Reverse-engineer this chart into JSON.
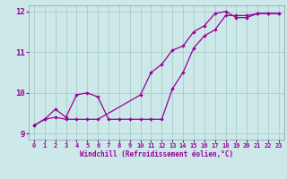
{
  "background_color": "#cce8e8",
  "line_color": "#990099",
  "grid_color": "#aacccc",
  "xlabel": "Windchill (Refroidissement éolien,°C)",
  "xlim": [
    -0.5,
    23.5
  ],
  "ylim": [
    8.85,
    12.15
  ],
  "yticks": [
    9,
    10,
    11,
    12
  ],
  "xticks": [
    0,
    1,
    2,
    3,
    4,
    5,
    6,
    7,
    8,
    9,
    10,
    11,
    12,
    13,
    14,
    15,
    16,
    17,
    18,
    19,
    20,
    21,
    22,
    23
  ],
  "series1_x": [
    0,
    1,
    2,
    3,
    4,
    5,
    6,
    7,
    8,
    9,
    10,
    11,
    12,
    13,
    14,
    15,
    16,
    17,
    18,
    19,
    20,
    21,
    22,
    23
  ],
  "series1_y": [
    9.2,
    9.35,
    9.6,
    9.4,
    9.95,
    10.0,
    9.9,
    9.35,
    9.35,
    9.35,
    9.35,
    9.35,
    9.35,
    10.1,
    10.5,
    11.1,
    11.4,
    11.55,
    11.9,
    11.9,
    11.9,
    11.95,
    11.95,
    11.95
  ],
  "series2_x": [
    0,
    1,
    2,
    3,
    4,
    5,
    6,
    10,
    11,
    12,
    13,
    14,
    15,
    16,
    17,
    18,
    19,
    20,
    21,
    22,
    23
  ],
  "series2_y": [
    9.2,
    9.35,
    9.4,
    9.35,
    9.35,
    9.35,
    9.35,
    9.95,
    10.5,
    10.7,
    11.05,
    11.15,
    11.5,
    11.65,
    11.95,
    12.0,
    11.85,
    11.85,
    11.95,
    11.95,
    11.95
  ]
}
